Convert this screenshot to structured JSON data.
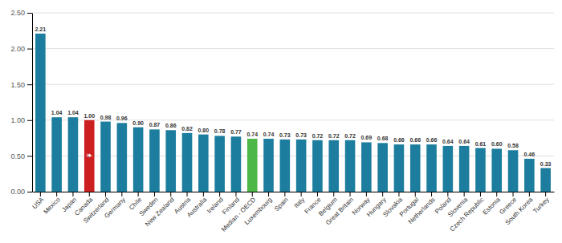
{
  "chart_data": {
    "type": "bar",
    "categories": [
      "USA",
      "Mexico",
      "Japan",
      "Canada",
      "Switzerland",
      "Germany",
      "Chile",
      "Sweden",
      "New Zealand",
      "Austria",
      "Australia",
      "Ireland",
      "Finland",
      "Median - OECD",
      "Luxembourg",
      "Spain",
      "Italy",
      "France",
      "Belgium",
      "Great Britain",
      "Norway",
      "Hungary",
      "Slovakia",
      "Portugal",
      "Netherlands",
      "Poland",
      "Slovenia",
      "Czech Republic",
      "Estonia",
      "Greece",
      "South Korea",
      "Turkey"
    ],
    "values": [
      2.21,
      1.04,
      1.04,
      1.0,
      0.98,
      0.96,
      0.9,
      0.87,
      0.86,
      0.82,
      0.8,
      0.78,
      0.77,
      0.74,
      0.74,
      0.73,
      0.73,
      0.72,
      0.72,
      0.72,
      0.69,
      0.68,
      0.66,
      0.66,
      0.66,
      0.64,
      0.64,
      0.61,
      0.6,
      0.58,
      0.46,
      0.33
    ],
    "value_labels": [
      "2.21",
      "1.04",
      "1.04",
      "1.00",
      "0.98",
      "0.96",
      "0.90",
      "0.87",
      "0.86",
      "0.82",
      "0.80",
      "0.78",
      "0.77",
      "0.74",
      "0.74",
      "0.73",
      "0.73",
      "0.72",
      "0.72",
      "0.72",
      "0.69",
      "0.68",
      "0.66",
      "0.66",
      "0.66",
      "0.64",
      "0.64",
      "0.61",
      "0.60",
      "0.58",
      "0.46",
      "0.33"
    ],
    "colors": [
      "#1c7d9e",
      "#1c7d9e",
      "#1c7d9e",
      "#cc2020",
      "#1c7d9e",
      "#1c7d9e",
      "#1c7d9e",
      "#1c7d9e",
      "#1c7d9e",
      "#1c7d9e",
      "#1c7d9e",
      "#1c7d9e",
      "#1c7d9e",
      "#4db848",
      "#1c7d9e",
      "#1c7d9e",
      "#1c7d9e",
      "#1c7d9e",
      "#1c7d9e",
      "#1c7d9e",
      "#1c7d9e",
      "#1c7d9e",
      "#1c7d9e",
      "#1c7d9e",
      "#1c7d9e",
      "#1c7d9e",
      "#1c7d9e",
      "#1c7d9e",
      "#1c7d9e",
      "#1c7d9e",
      "#1c7d9e",
      "#1c7d9e"
    ],
    "ylim": [
      0,
      2.5
    ],
    "yticks": [
      {
        "value": 0,
        "label": "0.00"
      },
      {
        "value": 0.5,
        "label": "0.50"
      },
      {
        "value": 1,
        "label": "1.00"
      },
      {
        "value": 1.5,
        "label": "1.50"
      },
      {
        "value": 2,
        "label": "2.00"
      },
      {
        "value": 2.5,
        "label": "2.50"
      }
    ],
    "grid": true,
    "data_labels": true,
    "annotations": [
      {
        "text": "❧",
        "x": "Canada"
      }
    ]
  }
}
